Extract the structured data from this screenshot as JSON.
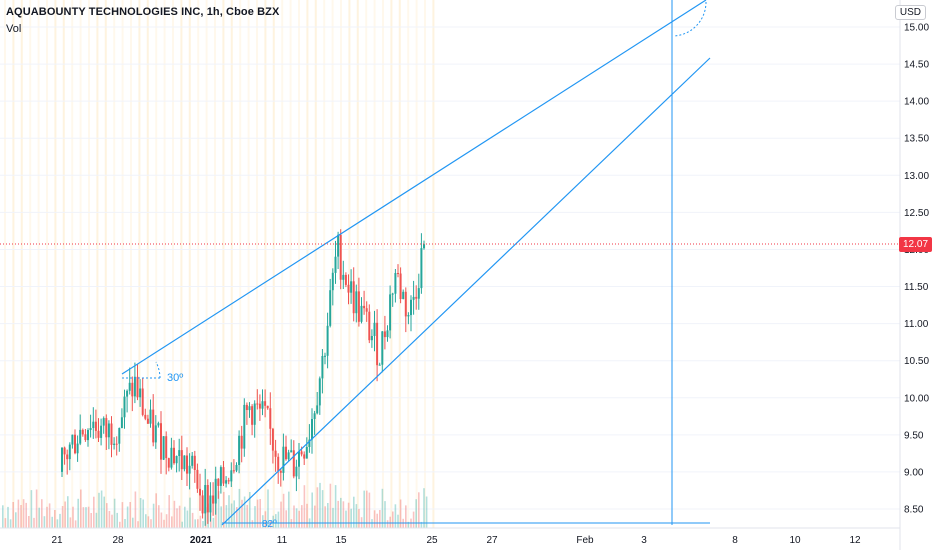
{
  "header": {
    "title": "AQUABOUNTY TECHNOLOGIES INC, 1h, Cboe BZX",
    "indicator": "Vol"
  },
  "axis": {
    "currency": "USD",
    "last_price": "12.07"
  },
  "colors": {
    "up": "#26a69a",
    "down": "#ef5350",
    "trend": "#2196f3",
    "price_line": "#f23645"
  },
  "chart_data": {
    "type": "candlestick",
    "ylim": [
      8.3,
      15.25
    ],
    "y_ticks": [
      "8.50",
      "9.00",
      "9.50",
      "10.00",
      "10.50",
      "11.00",
      "11.50",
      "12.00",
      "12.50",
      "13.00",
      "13.50",
      "14.00",
      "14.50",
      "15.00"
    ],
    "x_ticks": [
      "21",
      "28",
      "2021",
      "11",
      "15",
      "25",
      "27",
      "Feb",
      "3",
      "8",
      "10",
      "12"
    ],
    "last_price": 12.07,
    "annotations": {
      "angle_label": "30º",
      "bottom_label": "82º"
    },
    "ohlc_approx": [
      [
        9.0,
        9.3,
        8.9,
        9.1
      ],
      [
        9.1,
        9.6,
        9.0,
        9.5
      ],
      [
        9.5,
        9.9,
        9.3,
        9.7
      ],
      [
        9.7,
        10.1,
        9.4,
        9.5
      ],
      [
        9.5,
        9.8,
        9.2,
        9.7
      ],
      [
        9.7,
        10.3,
        9.6,
        10.2
      ],
      [
        10.2,
        10.3,
        9.5,
        9.6
      ],
      [
        9.6,
        9.9,
        9.2,
        9.4
      ],
      [
        9.4,
        9.7,
        9.0,
        9.2
      ],
      [
        9.2,
        9.6,
        8.9,
        9.0
      ],
      [
        9.0,
        9.3,
        8.5,
        8.6
      ],
      [
        8.6,
        8.9,
        8.4,
        8.8
      ],
      [
        8.8,
        9.4,
        8.7,
        9.3
      ],
      [
        9.3,
        10.0,
        9.2,
        9.9
      ],
      [
        9.9,
        10.8,
        9.6,
        9.7
      ],
      [
        9.7,
        10.0,
        9.0,
        9.2
      ],
      [
        9.2,
        9.4,
        8.9,
        9.1
      ],
      [
        9.1,
        9.6,
        9.0,
        9.5
      ],
      [
        9.5,
        10.6,
        9.4,
        10.5
      ],
      [
        10.5,
        12.3,
        10.4,
        12.0
      ],
      [
        12.0,
        12.1,
        11.2,
        11.4
      ],
      [
        11.4,
        11.8,
        10.8,
        11.0
      ],
      [
        11.0,
        11.2,
        10.4,
        10.6
      ],
      [
        10.6,
        11.9,
        10.5,
        11.7
      ],
      [
        11.7,
        11.8,
        11.0,
        11.1
      ],
      [
        11.1,
        12.2,
        11.0,
        12.07
      ]
    ]
  }
}
